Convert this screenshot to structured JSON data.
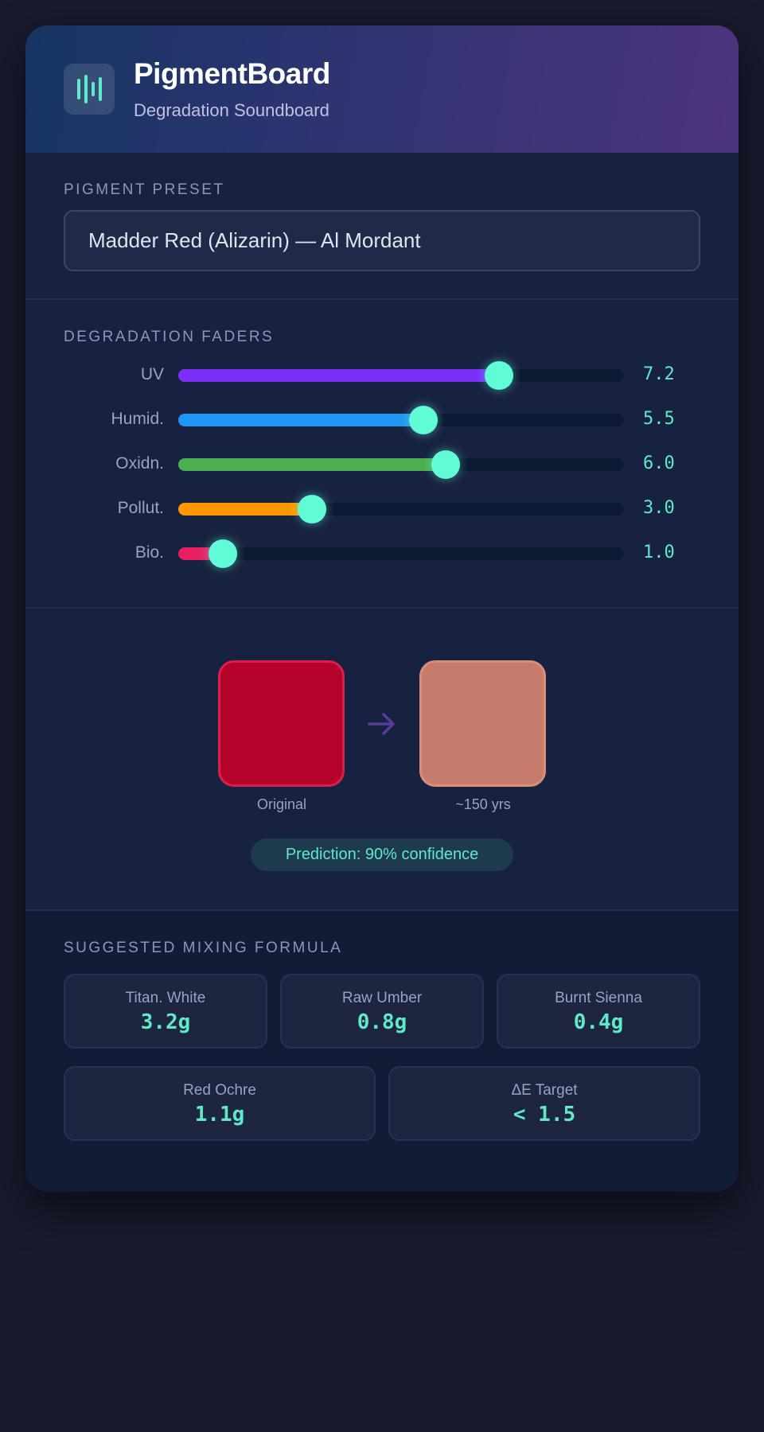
{
  "header": {
    "title": "PigmentBoard",
    "subtitle": "Degradation Soundboard",
    "logo_icon": "waveform-icon"
  },
  "preset": {
    "label": "PIGMENT PRESET",
    "value": "Madder Red (Alizarin) — Al Mordant"
  },
  "faders": {
    "label": "DEGRADATION FADERS",
    "max": 10,
    "thumb_color": "#62fbd7",
    "items": [
      {
        "name": "UV",
        "value": 7.2,
        "display": "7.2",
        "color": "#7b2ff7"
      },
      {
        "name": "Humid.",
        "value": 5.5,
        "display": "5.5",
        "color": "#2196f3"
      },
      {
        "name": "Oxidn.",
        "value": 6.0,
        "display": "6.0",
        "color": "#4caf50"
      },
      {
        "name": "Pollut.",
        "value": 3.0,
        "display": "3.0",
        "color": "#ff9800"
      },
      {
        "name": "Bio.",
        "value": 1.0,
        "display": "1.0",
        "color": "#e91e63"
      }
    ]
  },
  "prediction": {
    "original": {
      "label": "Original",
      "color": "#b5022a"
    },
    "aged": {
      "label": "~150 yrs",
      "color": "#c67b6c"
    },
    "arrow_icon": "arrow-right-icon",
    "confidence": "Prediction: 90% confidence"
  },
  "mixing": {
    "label": "SUGGESTED MIXING FORMULA",
    "items": [
      {
        "name": "Titan. White",
        "value": "3.2g"
      },
      {
        "name": "Raw Umber",
        "value": "0.8g"
      },
      {
        "name": "Burnt Sienna",
        "value": "0.4g"
      },
      {
        "name": "Red Ochre",
        "value": "1.1g"
      },
      {
        "name": "ΔE Target",
        "value": "< 1.5"
      }
    ]
  }
}
